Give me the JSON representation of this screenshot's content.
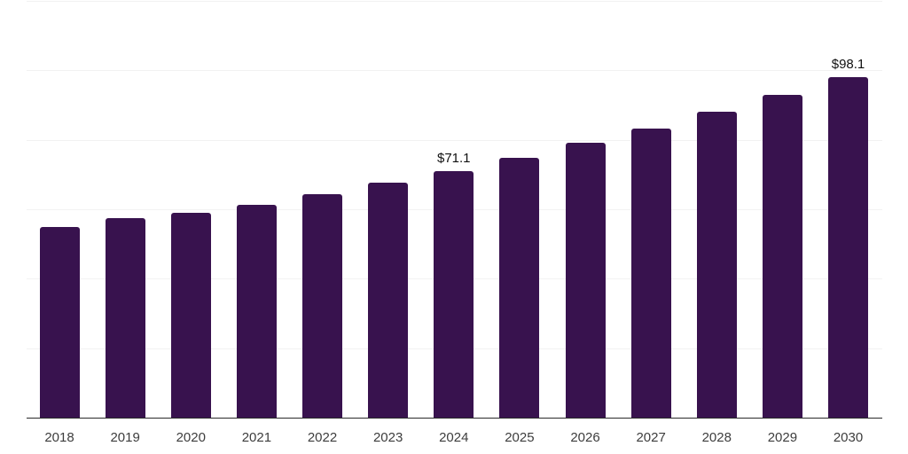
{
  "chart_data": {
    "type": "bar",
    "title": "",
    "xlabel": "",
    "ylabel": "",
    "categories": [
      "2018",
      "2019",
      "2020",
      "2021",
      "2022",
      "2023",
      "2024",
      "2025",
      "2026",
      "2027",
      "2028",
      "2029",
      "2030"
    ],
    "values": [
      54.9,
      57.4,
      58.9,
      61.2,
      64.3,
      67.6,
      71.1,
      74.8,
      79.1,
      83.2,
      88.0,
      93.0,
      98.1
    ],
    "value_prefix": "$",
    "data_labels": [
      {
        "category": "2024",
        "text": "$71.1"
      },
      {
        "category": "2030",
        "text": "$98.1"
      }
    ],
    "ylim": [
      0,
      120
    ],
    "grid": true,
    "gridline_step": 20,
    "y_tick_labels_visible": false,
    "legend_position": "none",
    "colors": {
      "bar": "#38124e",
      "axis_line": "#2b2b2b",
      "gridline": "#f2f2f2",
      "data_label": "#111111",
      "tick_label": "#3d3d3d",
      "background": "#ffffff"
    }
  }
}
